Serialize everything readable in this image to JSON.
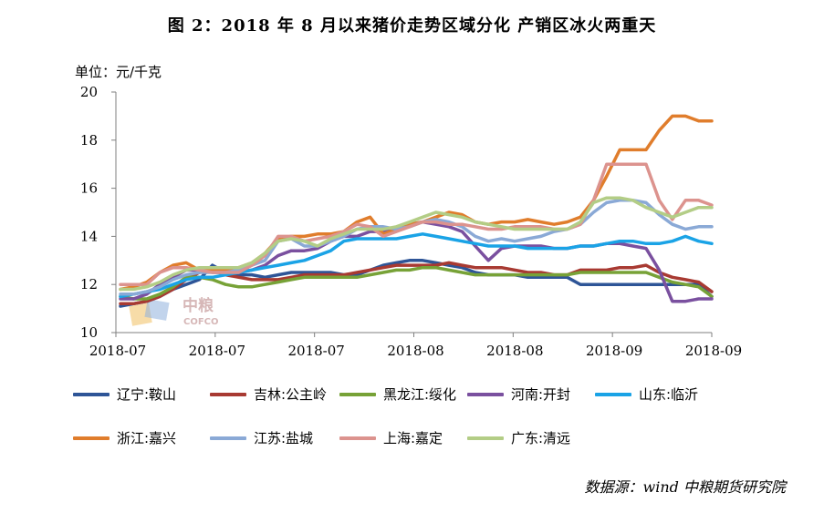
{
  "title": "图 2：2018 年 8 月以来猪价走势区域分化  产销区冰火两重天",
  "unit_label": "单位：元/千克",
  "source": "数据源：wind  中粮期货研究院",
  "logo": {
    "text_main": "中粮",
    "text_sub": "COFCO"
  },
  "chart_data": {
    "type": "line",
    "ylim": [
      10,
      20
    ],
    "yticks": [
      10,
      12,
      14,
      16,
      18,
      20
    ],
    "xtick_labels": [
      "2018-07",
      "2018-07",
      "2018-07",
      "2018-08",
      "2018-08",
      "2018-09",
      "2018-09"
    ],
    "grid": false,
    "legend_position": "bottom",
    "series": [
      {
        "name": "辽宁:鞍山",
        "color": "#2e5597",
        "values": [
          11.1,
          11.2,
          11.3,
          11.5,
          11.8,
          12.0,
          12.2,
          12.8,
          12.5,
          12.4,
          12.4,
          12.3,
          12.4,
          12.5,
          12.5,
          12.5,
          12.5,
          12.4,
          12.4,
          12.6,
          12.8,
          12.9,
          13.0,
          13.0,
          12.9,
          12.8,
          12.7,
          12.5,
          12.4,
          12.4,
          12.4,
          12.3,
          12.3,
          12.3,
          12.3,
          12.0,
          12.0,
          12.0,
          12.0,
          12.0,
          12.0,
          12.0,
          12.0,
          12.0,
          12.0,
          11.5
        ]
      },
      {
        "name": "吉林:公主岭",
        "color": "#a83a32",
        "values": [
          11.2,
          11.2,
          11.3,
          11.5,
          11.8,
          12.2,
          12.5,
          12.6,
          12.4,
          12.3,
          12.2,
          12.2,
          12.2,
          12.3,
          12.4,
          12.4,
          12.4,
          12.4,
          12.5,
          12.6,
          12.7,
          12.8,
          12.8,
          12.8,
          12.8,
          12.9,
          12.8,
          12.7,
          12.7,
          12.7,
          12.6,
          12.5,
          12.5,
          12.4,
          12.4,
          12.6,
          12.6,
          12.6,
          12.7,
          12.7,
          12.8,
          12.5,
          12.3,
          12.2,
          12.1,
          11.7
        ]
      },
      {
        "name": "黑龙江:绥化",
        "color": "#77a237",
        "values": [
          11.5,
          11.4,
          11.4,
          11.6,
          11.9,
          12.3,
          12.3,
          12.2,
          12.0,
          11.9,
          11.9,
          12.0,
          12.1,
          12.2,
          12.3,
          12.3,
          12.3,
          12.3,
          12.3,
          12.4,
          12.5,
          12.6,
          12.6,
          12.7,
          12.7,
          12.6,
          12.5,
          12.4,
          12.4,
          12.4,
          12.4,
          12.4,
          12.4,
          12.4,
          12.4,
          12.5,
          12.5,
          12.5,
          12.5,
          12.5,
          12.5,
          12.3,
          12.1,
          12.0,
          11.9,
          11.5
        ]
      },
      {
        "name": "河南:开封",
        "color": "#7a509f",
        "values": [
          11.4,
          11.4,
          11.6,
          12.0,
          12.3,
          12.6,
          12.6,
          12.5,
          12.5,
          12.5,
          12.6,
          12.8,
          13.2,
          13.4,
          13.4,
          13.5,
          13.8,
          14.0,
          14.0,
          14.2,
          14.2,
          14.3,
          14.5,
          14.6,
          14.5,
          14.4,
          14.2,
          13.6,
          13.0,
          13.5,
          13.6,
          13.6,
          13.6,
          13.5,
          13.5,
          13.6,
          13.6,
          13.7,
          13.7,
          13.6,
          13.5,
          12.6,
          11.3,
          11.3,
          11.4,
          11.4
        ]
      },
      {
        "name": "山东:临沂",
        "color": "#1aa3e6",
        "values": [
          11.5,
          11.6,
          11.7,
          11.8,
          12.0,
          12.2,
          12.3,
          12.3,
          12.4,
          12.5,
          12.6,
          12.7,
          12.8,
          12.9,
          13.0,
          13.2,
          13.4,
          13.8,
          13.9,
          13.9,
          13.9,
          13.9,
          14.0,
          14.1,
          14.0,
          13.9,
          13.8,
          13.7,
          13.6,
          13.6,
          13.6,
          13.5,
          13.5,
          13.5,
          13.5,
          13.6,
          13.6,
          13.7,
          13.8,
          13.8,
          13.7,
          13.7,
          13.8,
          14.0,
          13.8,
          13.7
        ]
      },
      {
        "name": "浙江:嘉兴",
        "color": "#e07d2c",
        "values": [
          11.8,
          11.9,
          12.1,
          12.5,
          12.8,
          12.9,
          12.6,
          12.6,
          12.6,
          12.7,
          12.9,
          13.3,
          13.9,
          14.0,
          14.0,
          14.1,
          14.1,
          14.2,
          14.6,
          14.8,
          14.1,
          14.3,
          14.5,
          14.6,
          14.8,
          15.0,
          14.9,
          14.6,
          14.5,
          14.6,
          14.6,
          14.7,
          14.6,
          14.5,
          14.6,
          14.8,
          15.5,
          16.5,
          17.6,
          17.6,
          17.6,
          18.4,
          19.0,
          19.0,
          18.8,
          18.8
        ]
      },
      {
        "name": "江苏:盐城",
        "color": "#8aa9d6",
        "values": [
          11.6,
          11.6,
          11.7,
          11.9,
          12.2,
          12.4,
          12.5,
          12.5,
          12.5,
          12.6,
          12.8,
          13.0,
          13.8,
          13.9,
          13.6,
          13.6,
          13.8,
          14.0,
          14.3,
          14.4,
          14.4,
          14.3,
          14.4,
          14.6,
          14.7,
          14.6,
          14.4,
          14.0,
          13.8,
          13.9,
          13.8,
          13.9,
          14.0,
          14.2,
          14.3,
          14.5,
          15.0,
          15.4,
          15.5,
          15.5,
          15.4,
          14.9,
          14.5,
          14.3,
          14.4,
          14.4
        ]
      },
      {
        "name": "上海:嘉定",
        "color": "#dc938e",
        "values": [
          12.0,
          12.0,
          12.0,
          12.5,
          12.7,
          12.7,
          12.6,
          12.5,
          12.5,
          12.5,
          12.8,
          13.2,
          14.0,
          14.0,
          13.8,
          13.9,
          14.0,
          14.2,
          14.5,
          14.4,
          14.0,
          14.2,
          14.4,
          14.6,
          14.6,
          14.5,
          14.5,
          14.4,
          14.3,
          14.3,
          14.4,
          14.4,
          14.4,
          14.3,
          14.3,
          14.5,
          15.5,
          17.0,
          17.0,
          17.0,
          17.0,
          15.5,
          14.7,
          15.5,
          15.5,
          15.3
        ]
      },
      {
        "name": "广东:清远",
        "color": "#b3cd86",
        "values": [
          11.8,
          11.8,
          11.9,
          12.1,
          12.4,
          12.6,
          12.7,
          12.7,
          12.7,
          12.7,
          12.9,
          13.3,
          13.8,
          13.9,
          13.8,
          13.6,
          13.9,
          14.1,
          14.3,
          14.3,
          14.3,
          14.4,
          14.6,
          14.8,
          15.0,
          14.9,
          14.8,
          14.6,
          14.5,
          14.4,
          14.3,
          14.3,
          14.3,
          14.3,
          14.3,
          14.6,
          15.4,
          15.6,
          15.6,
          15.5,
          15.2,
          15.0,
          14.8,
          15.0,
          15.2,
          15.2
        ]
      }
    ]
  }
}
